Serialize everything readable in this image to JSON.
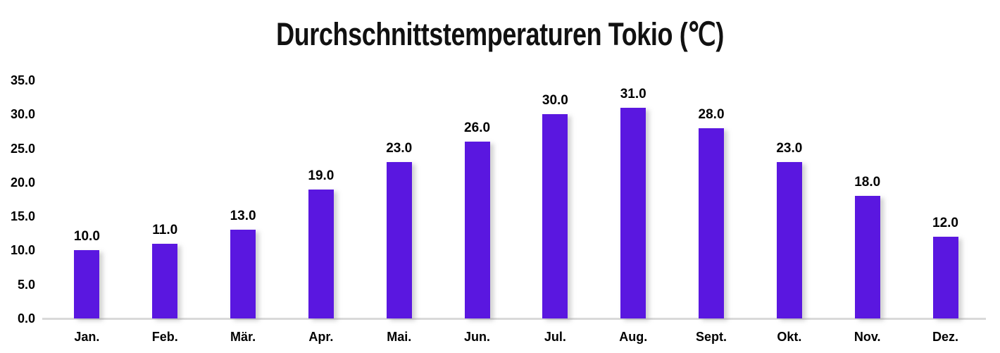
{
  "title": "Durchschnittstemperaturen Tokio (℃)",
  "chart_data": {
    "type": "bar",
    "title": "Durchschnittstemperaturen Tokio (℃)",
    "categories": [
      "Jan.",
      "Feb.",
      "Mär.",
      "Apr.",
      "Mai.",
      "Jun.",
      "Jul.",
      "Aug.",
      "Sept.",
      "Okt.",
      "Nov.",
      "Dez."
    ],
    "values": [
      10.0,
      11.0,
      13.0,
      19.0,
      23.0,
      26.0,
      30.0,
      31.0,
      28.0,
      23.0,
      18.0,
      12.0
    ],
    "value_labels": [
      "10.0",
      "11.0",
      "13.0",
      "19.0",
      "23.0",
      "26.0",
      "30.0",
      "31.0",
      "28.0",
      "23.0",
      "18.0",
      "12.0"
    ],
    "yticks": [
      {
        "value": 0,
        "label": "0.0"
      },
      {
        "value": 5,
        "label": "5.0"
      },
      {
        "value": 10,
        "label": "10.0"
      },
      {
        "value": 15,
        "label": "15.0"
      },
      {
        "value": 20,
        "label": "20.0"
      },
      {
        "value": 25,
        "label": "25.0"
      },
      {
        "value": 30,
        "label": "30.0"
      },
      {
        "value": 35,
        "label": "35.0"
      }
    ],
    "ylim": [
      0,
      35
    ],
    "xlabel": "",
    "ylabel": "",
    "grid": false,
    "legend": false,
    "bar_color": "#5a17e0",
    "axis_line_color": "#d9d9d9",
    "label_color": "#000000",
    "background": "#ffffff"
  }
}
